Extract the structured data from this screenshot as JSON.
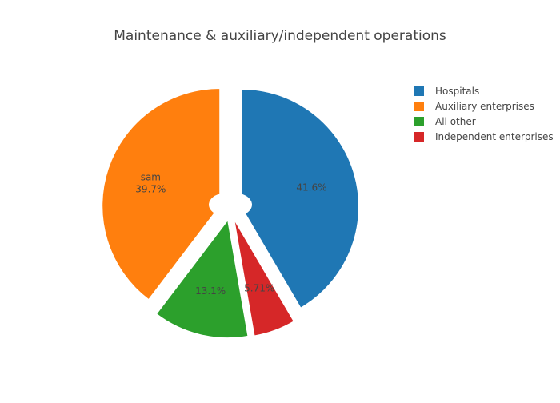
{
  "chart_data": {
    "type": "pie",
    "title": "Maintenance & auxiliary/independent operations",
    "slices": [
      {
        "label": "Hospitals",
        "percent": 41.6,
        "text": "41.6%",
        "color": "#1f77b4"
      },
      {
        "label": "Independent enterprises",
        "percent": 5.71,
        "text": "5.71%",
        "color": "#d62728"
      },
      {
        "label": "All other",
        "percent": 13.1,
        "text": "13.1%",
        "color": "#2ca02c"
      },
      {
        "label": "Auxiliary enterprises",
        "percent": 39.7,
        "text": "39.7%",
        "extra_text": "sam",
        "color": "#ff7f0e"
      }
    ],
    "direction": "clockwise",
    "start": "top",
    "pulled": true,
    "legend": {
      "placement": "top-right",
      "entries": [
        {
          "label": "Hospitals",
          "color": "#1f77b4"
        },
        {
          "label": "Auxiliary enterprises",
          "color": "#ff7f0e"
        },
        {
          "label": "All other",
          "color": "#2ca02c"
        },
        {
          "label": "Independent enterprises",
          "color": "#d62728"
        }
      ]
    }
  }
}
